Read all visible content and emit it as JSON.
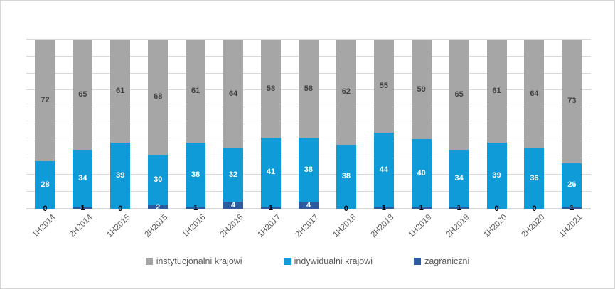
{
  "chart_data": {
    "type": "bar",
    "stacked": true,
    "percent_stacked": true,
    "title": "",
    "xlabel": "",
    "ylabel": "",
    "ylim": [
      0,
      100
    ],
    "gridline_step": 10,
    "grid": true,
    "legend_position": "bottom",
    "categories": [
      "1H2014",
      "2H2014",
      "1H2015",
      "2H2015",
      "1H2016",
      "2H2016",
      "1H2017",
      "2H2017",
      "1H2018",
      "2H2018",
      "1H2019",
      "2H2019",
      "1H2020",
      "2H2020",
      "1H2021"
    ],
    "series": [
      {
        "name": "instytucjonalni krajowi",
        "color": "#a6a6a6",
        "label_color": "#404040",
        "values": [
          72,
          65,
          61,
          68,
          61,
          64,
          58,
          58,
          62,
          55,
          59,
          65,
          61,
          64,
          73
        ]
      },
      {
        "name": "indywidualni krajowi",
        "color": "#0e9bd8",
        "label_color": "#ffffff",
        "values": [
          28,
          34,
          39,
          30,
          38,
          32,
          41,
          38,
          38,
          44,
          40,
          34,
          39,
          36,
          26
        ]
      },
      {
        "name": "zagraniczni",
        "color": "#2e5b9f",
        "label_color_inside": "#ffffff",
        "label_color_outside": "#000000",
        "values": [
          0,
          1,
          0,
          2,
          1,
          4,
          1,
          4,
          0,
          1,
          1,
          1,
          0,
          0,
          1
        ]
      }
    ]
  },
  "colors": {
    "gridline": "#d9d9d9",
    "axis_line": "#bfbfbf",
    "axis_text": "#595959",
    "frame_border": "#d6d6d6"
  }
}
